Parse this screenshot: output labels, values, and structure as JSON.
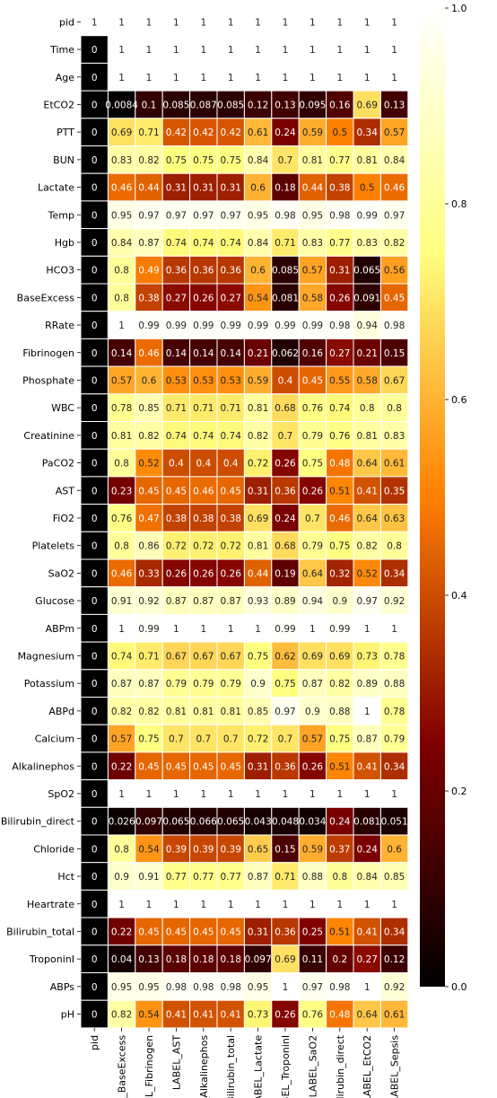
{
  "chart_data": {
    "type": "heatmap",
    "title": "",
    "xlabel": "",
    "ylabel": "",
    "colormap": "afmhot",
    "colorbar_range": [
      0,
      1
    ],
    "colorbar_ticks": [
      "0.0",
      "0.2",
      "0.4",
      "0.6",
      "0.8",
      "1.0"
    ],
    "colorbar_tick_values": [
      0,
      0.2,
      0.4,
      0.6,
      0.8,
      1.0
    ],
    "x_labels": [
      "pid",
      "LABEL_BaseExcess",
      "LABEL_Fibrinogen",
      "LABEL_AST",
      "LABEL_Alkalinephos",
      "LABEL_Bilirubin_total",
      "LABEL_Lactate",
      "LABEL_TroponinI",
      "LABEL_SaO2",
      "LABEL_Bilirubin_direct",
      "LABEL_EtCO2",
      "LABEL_Sepsis"
    ],
    "y_labels": [
      "pid",
      "Time",
      "Age",
      "EtCO2",
      "PTT",
      "BUN",
      "Lactate",
      "Temp",
      "Hgb",
      "HCO3",
      "BaseExcess",
      "RRate",
      "Fibrinogen",
      "Phosphate",
      "WBC",
      "Creatinine",
      "PaCO2",
      "AST",
      "FiO2",
      "Platelets",
      "SaO2",
      "Glucose",
      "ABPm",
      "Magnesium",
      "Potassium",
      "ABPd",
      "Calcium",
      "Alkalinephos",
      "SpO2",
      "Bilirubin_direct",
      "Chloride",
      "Hct",
      "Heartrate",
      "Bilirubin_total",
      "TroponinI",
      "ABPs",
      "pH"
    ],
    "values": [
      [
        1,
        1,
        1,
        1,
        1,
        1,
        1,
        1,
        1,
        1,
        1,
        1
      ],
      [
        0,
        1,
        1,
        1,
        1,
        1,
        1,
        1,
        1,
        1,
        1,
        1
      ],
      [
        0,
        1,
        1,
        1,
        1,
        1,
        1,
        1,
        1,
        1,
        1,
        1
      ],
      [
        0,
        0.0084,
        0.1,
        0.085,
        0.087,
        0.085,
        0.12,
        0.13,
        0.095,
        0.16,
        0.69,
        0.13
      ],
      [
        0,
        0.69,
        0.71,
        0.42,
        0.42,
        0.42,
        0.61,
        0.24,
        0.59,
        0.5,
        0.34,
        0.57
      ],
      [
        0,
        0.83,
        0.82,
        0.75,
        0.75,
        0.75,
        0.84,
        0.7,
        0.81,
        0.77,
        0.81,
        0.84
      ],
      [
        0,
        0.46,
        0.44,
        0.31,
        0.31,
        0.31,
        0.6,
        0.18,
        0.44,
        0.38,
        0.5,
        0.46
      ],
      [
        0,
        0.95,
        0.97,
        0.97,
        0.97,
        0.97,
        0.95,
        0.98,
        0.95,
        0.98,
        0.99,
        0.97
      ],
      [
        0,
        0.84,
        0.87,
        0.74,
        0.74,
        0.74,
        0.84,
        0.71,
        0.83,
        0.77,
        0.83,
        0.82
      ],
      [
        0,
        0.8,
        0.49,
        0.36,
        0.36,
        0.36,
        0.6,
        0.085,
        0.57,
        0.31,
        0.065,
        0.56
      ],
      [
        0,
        0.8,
        0.38,
        0.27,
        0.26,
        0.27,
        0.54,
        0.081,
        0.58,
        0.26,
        0.091,
        0.45
      ],
      [
        0,
        1,
        0.99,
        0.99,
        0.99,
        0.99,
        0.99,
        0.99,
        0.99,
        0.98,
        0.94,
        0.98
      ],
      [
        0,
        0.14,
        0.46,
        0.14,
        0.14,
        0.14,
        0.21,
        0.062,
        0.16,
        0.27,
        0.21,
        0.15
      ],
      [
        0,
        0.57,
        0.6,
        0.53,
        0.53,
        0.53,
        0.59,
        0.4,
        0.45,
        0.55,
        0.58,
        0.67
      ],
      [
        0,
        0.78,
        0.85,
        0.71,
        0.71,
        0.71,
        0.81,
        0.68,
        0.76,
        0.74,
        0.8,
        0.8
      ],
      [
        0,
        0.81,
        0.82,
        0.74,
        0.74,
        0.74,
        0.82,
        0.7,
        0.79,
        0.76,
        0.81,
        0.83
      ],
      [
        0,
        0.8,
        0.52,
        0.4,
        0.4,
        0.4,
        0.72,
        0.26,
        0.75,
        0.48,
        0.64,
        0.61
      ],
      [
        0,
        0.23,
        0.45,
        0.45,
        0.46,
        0.45,
        0.31,
        0.36,
        0.26,
        0.51,
        0.41,
        0.35
      ],
      [
        0,
        0.76,
        0.47,
        0.38,
        0.38,
        0.38,
        0.69,
        0.24,
        0.7,
        0.46,
        0.64,
        0.63
      ],
      [
        0,
        0.8,
        0.86,
        0.72,
        0.72,
        0.72,
        0.81,
        0.68,
        0.79,
        0.75,
        0.82,
        0.8
      ],
      [
        0,
        0.46,
        0.33,
        0.26,
        0.26,
        0.26,
        0.44,
        0.19,
        0.64,
        0.32,
        0.52,
        0.34
      ],
      [
        0,
        0.91,
        0.92,
        0.87,
        0.87,
        0.87,
        0.93,
        0.89,
        0.94,
        0.9,
        0.97,
        0.92
      ],
      [
        0,
        1,
        0.99,
        1,
        1,
        1,
        1,
        0.99,
        1,
        0.99,
        1,
        1
      ],
      [
        0,
        0.74,
        0.71,
        0.67,
        0.67,
        0.67,
        0.75,
        0.62,
        0.69,
        0.69,
        0.73,
        0.78
      ],
      [
        0,
        0.87,
        0.87,
        0.79,
        0.79,
        0.79,
        0.9,
        0.75,
        0.87,
        0.82,
        0.89,
        0.88
      ],
      [
        0,
        0.82,
        0.82,
        0.81,
        0.81,
        0.81,
        0.85,
        0.97,
        0.9,
        0.88,
        1,
        0.78
      ],
      [
        0,
        0.57,
        0.75,
        0.7,
        0.7,
        0.7,
        0.72,
        0.7,
        0.57,
        0.75,
        0.87,
        0.79
      ],
      [
        0,
        0.22,
        0.45,
        0.45,
        0.45,
        0.45,
        0.31,
        0.36,
        0.26,
        0.51,
        0.41,
        0.34
      ],
      [
        0,
        1,
        1,
        1,
        1,
        1,
        1,
        1,
        1,
        1,
        1,
        1
      ],
      [
        0,
        0.026,
        0.097,
        0.065,
        0.066,
        0.065,
        0.043,
        0.048,
        0.034,
        0.24,
        0.081,
        0.051
      ],
      [
        0,
        0.8,
        0.54,
        0.39,
        0.39,
        0.39,
        0.65,
        0.15,
        0.59,
        0.37,
        0.24,
        0.6
      ],
      [
        0,
        0.9,
        0.91,
        0.77,
        0.77,
        0.77,
        0.87,
        0.71,
        0.88,
        0.8,
        0.84,
        0.85
      ],
      [
        0,
        1,
        1,
        1,
        1,
        1,
        1,
        1,
        1,
        1,
        1,
        1
      ],
      [
        0,
        0.22,
        0.45,
        0.45,
        0.45,
        0.45,
        0.31,
        0.36,
        0.25,
        0.51,
        0.41,
        0.34
      ],
      [
        0,
        0.04,
        0.13,
        0.18,
        0.18,
        0.18,
        0.097,
        0.69,
        0.11,
        0.2,
        0.27,
        0.12
      ],
      [
        0,
        0.95,
        0.95,
        0.98,
        0.98,
        0.98,
        0.95,
        1,
        0.97,
        0.98,
        1,
        0.92
      ],
      [
        0,
        0.82,
        0.54,
        0.41,
        0.41,
        0.41,
        0.73,
        0.26,
        0.76,
        0.48,
        0.64,
        0.61
      ]
    ]
  }
}
